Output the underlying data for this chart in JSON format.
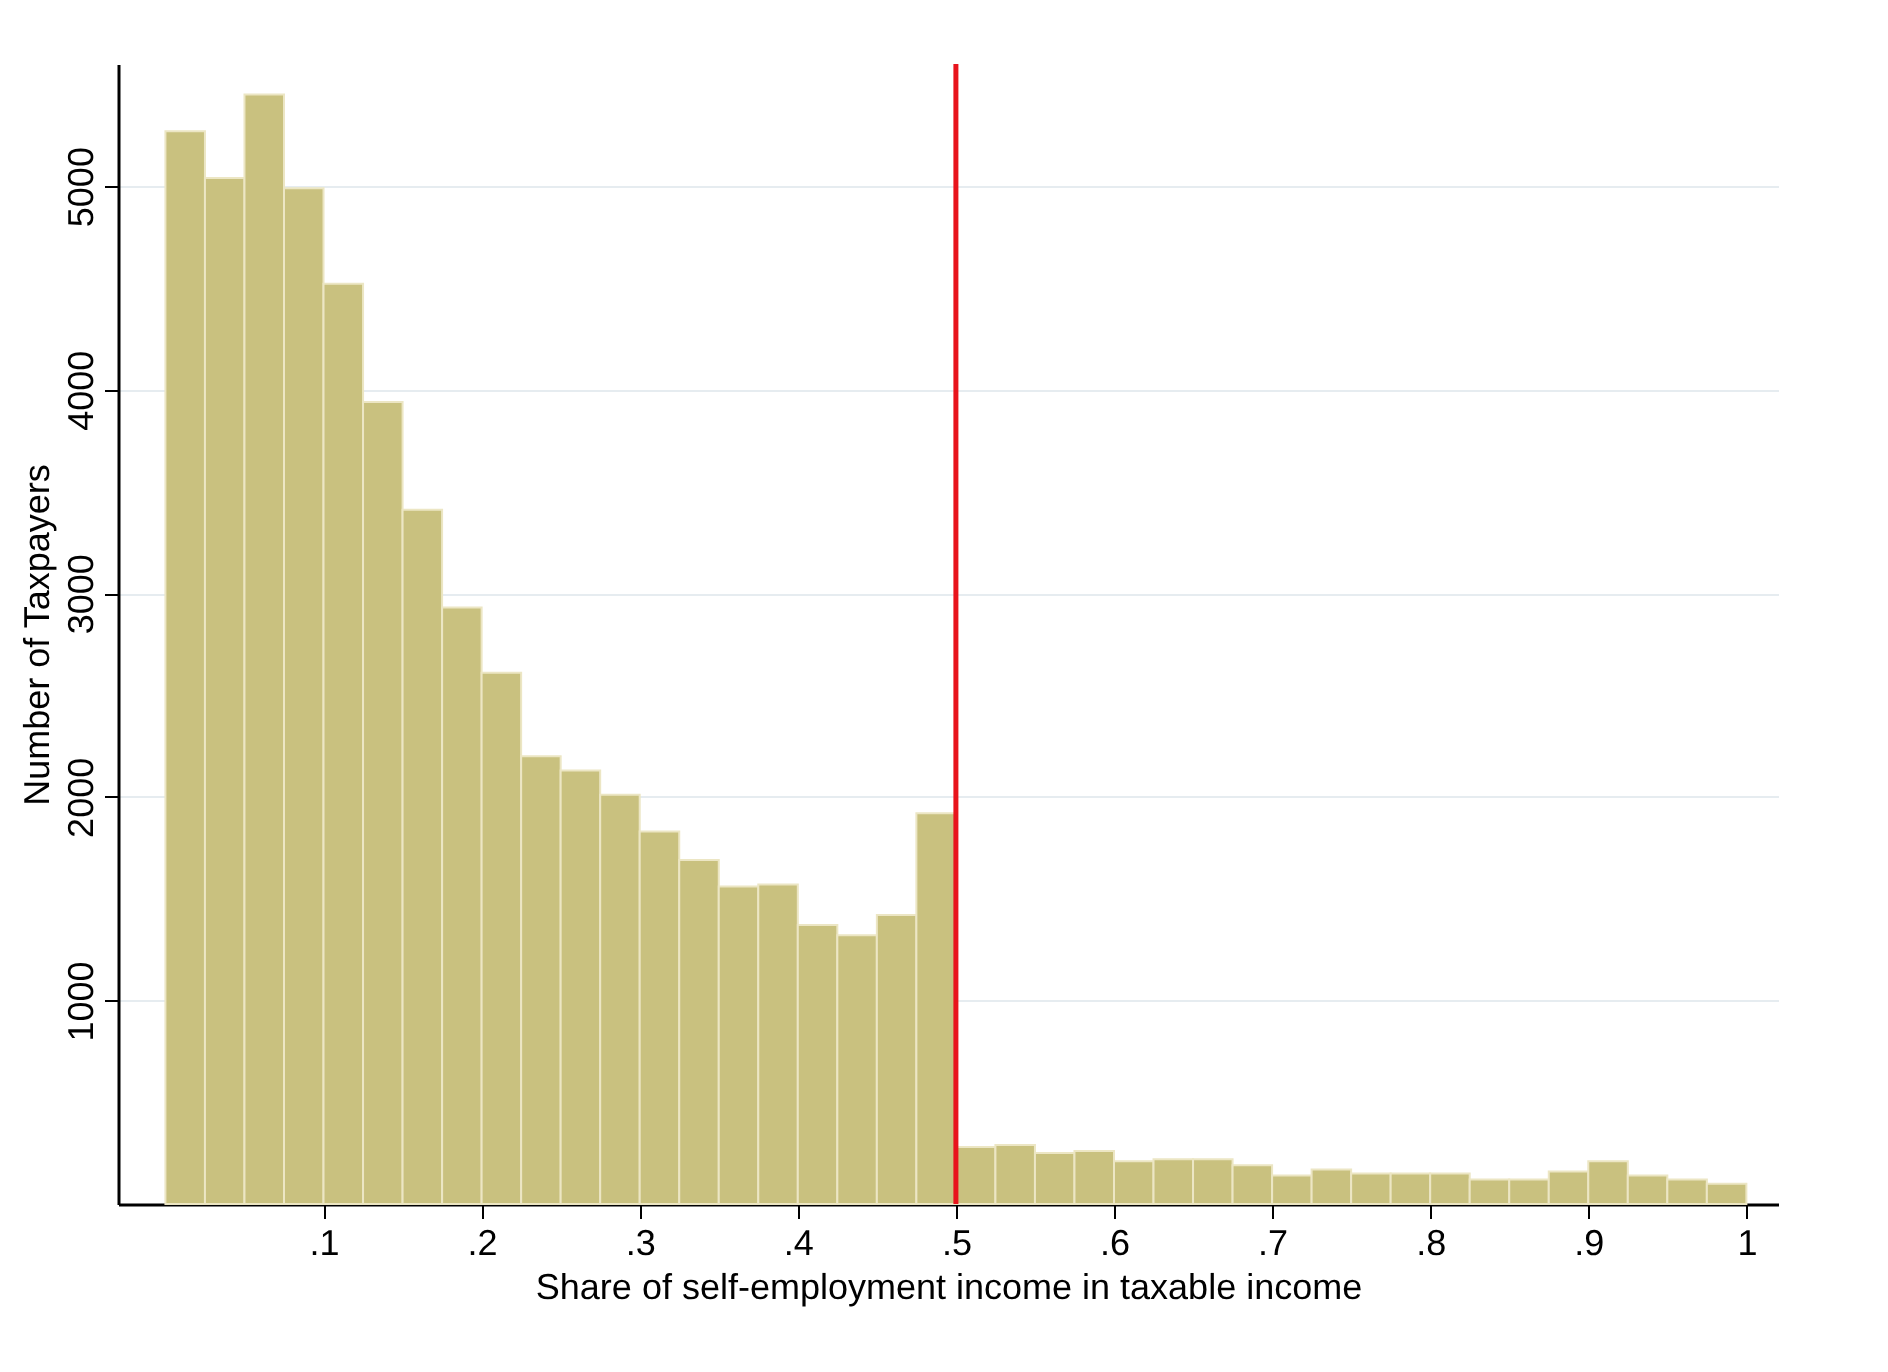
{
  "chart_data": {
    "type": "histogram",
    "xlabel": "Share of self-employment income in taxable income",
    "ylabel": "Number of Taxpayers",
    "bins": [
      0,
      0.025,
      0.05,
      0.075,
      0.1,
      0.125,
      0.15,
      0.175,
      0.2,
      0.225,
      0.25,
      0.275,
      0.3,
      0.325,
      0.35,
      0.375,
      0.4,
      0.425,
      0.45,
      0.475,
      0.5,
      0.525,
      0.55,
      0.575,
      0.6,
      0.625,
      0.65,
      0.675,
      0.7,
      0.725,
      0.75,
      0.775,
      0.8,
      0.825,
      0.85,
      0.875,
      0.9,
      0.925,
      0.95,
      0.975,
      1
    ],
    "values": [
      5270,
      5040,
      5450,
      4990,
      4520,
      3940,
      3410,
      2930,
      2610,
      2200,
      2130,
      2010,
      1830,
      1690,
      1560,
      1570,
      1370,
      1320,
      1420,
      1920,
      280,
      290,
      250,
      260,
      210,
      220,
      220,
      190,
      140,
      170,
      150,
      150,
      150,
      120,
      120,
      160,
      210,
      140,
      120,
      100
    ],
    "color": "#c9c17f",
    "xlim": [
      -0.03,
      1.02
    ],
    "ylim": [
      0,
      5600
    ],
    "xticks": [
      {
        "value": 0.1,
        "label": ".1"
      },
      {
        "value": 0.2,
        "label": ".2"
      },
      {
        "value": 0.3,
        "label": ".3"
      },
      {
        "value": 0.4,
        "label": ".4"
      },
      {
        "value": 0.5,
        "label": ".5"
      },
      {
        "value": 0.6,
        "label": ".6"
      },
      {
        "value": 0.7,
        "label": ".7"
      },
      {
        "value": 0.8,
        "label": ".8"
      },
      {
        "value": 0.9,
        "label": ".9"
      },
      {
        "value": 1,
        "label": "1"
      }
    ],
    "yticks": [
      1000,
      2000,
      3000,
      4000,
      5000
    ],
    "grid": "y",
    "ref_lines": [
      {
        "axis": "x",
        "value": 0.5,
        "color": "#e8141c"
      }
    ]
  }
}
